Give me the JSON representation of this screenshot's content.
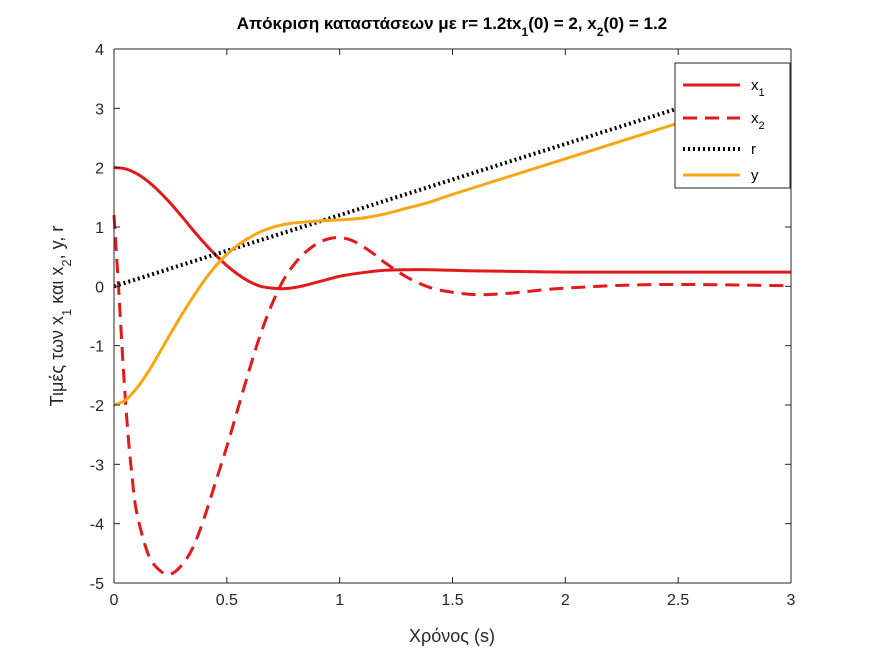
{
  "chart_data": {
    "type": "line",
    "title": "Απόκριση καταστάσεων με r= 1.2tx₁(0) = 2, x₂(0) = 1.2",
    "xlabel": "Χρόνος (s)",
    "ylabel": "Τιμές των x₁ και x₂, y, r",
    "xlim": [
      0,
      3
    ],
    "ylim": [
      -5,
      4
    ],
    "xticks": [
      "0",
      "0.5",
      "1",
      "1.5",
      "2",
      "2.5",
      "3"
    ],
    "yticks": [
      "-5",
      "-4",
      "-3",
      "-2",
      "-1",
      "0",
      "1",
      "2",
      "3",
      "4"
    ],
    "grid": false,
    "legend_position": "top-right",
    "series": [
      {
        "name": "x₁",
        "color": "#e31a1c",
        "style": "solid",
        "x": [
          0,
          0.05,
          0.1,
          0.15,
          0.2,
          0.25,
          0.3,
          0.35,
          0.4,
          0.45,
          0.5,
          0.55,
          0.6,
          0.65,
          0.7,
          0.75,
          0.8,
          0.85,
          0.9,
          0.95,
          1.0,
          1.1,
          1.2,
          1.3,
          1.4,
          1.5,
          1.6,
          1.8,
          2.0,
          2.2,
          2.5,
          2.8,
          3.0
        ],
        "y": [
          2.0,
          1.98,
          1.9,
          1.77,
          1.6,
          1.4,
          1.18,
          0.95,
          0.73,
          0.53,
          0.35,
          0.2,
          0.08,
          0.0,
          -0.03,
          -0.04,
          -0.02,
          0.02,
          0.07,
          0.12,
          0.17,
          0.23,
          0.27,
          0.28,
          0.28,
          0.27,
          0.26,
          0.25,
          0.24,
          0.24,
          0.24,
          0.24,
          0.24
        ]
      },
      {
        "name": "x₂",
        "color": "#e31a1c",
        "style": "dashed",
        "x": [
          0,
          0.02,
          0.04,
          0.06,
          0.08,
          0.1,
          0.15,
          0.2,
          0.25,
          0.3,
          0.35,
          0.4,
          0.45,
          0.5,
          0.55,
          0.6,
          0.65,
          0.7,
          0.75,
          0.8,
          0.85,
          0.9,
          0.95,
          1.0,
          1.05,
          1.1,
          1.15,
          1.2,
          1.3,
          1.4,
          1.5,
          1.6,
          1.7,
          1.8,
          1.9,
          2.0,
          2.2,
          2.4,
          2.6,
          2.8,
          3.0
        ],
        "y": [
          1.2,
          0.0,
          -1.3,
          -2.4,
          -3.2,
          -3.8,
          -4.5,
          -4.78,
          -4.85,
          -4.7,
          -4.4,
          -3.9,
          -3.3,
          -2.7,
          -2.05,
          -1.4,
          -0.8,
          -0.3,
          0.1,
          0.38,
          0.58,
          0.72,
          0.8,
          0.82,
          0.78,
          0.68,
          0.55,
          0.4,
          0.15,
          -0.02,
          -0.1,
          -0.14,
          -0.13,
          -0.1,
          -0.06,
          -0.03,
          0.01,
          0.03,
          0.03,
          0.02,
          0.01
        ]
      },
      {
        "name": "r",
        "color": "#000000",
        "style": "dotted",
        "x": [
          0,
          3
        ],
        "y": [
          0,
          3.6
        ]
      },
      {
        "name": "y",
        "color": "#f5a815",
        "style": "solid",
        "x": [
          0,
          0.05,
          0.1,
          0.15,
          0.2,
          0.25,
          0.3,
          0.35,
          0.4,
          0.45,
          0.5,
          0.55,
          0.6,
          0.65,
          0.7,
          0.75,
          0.8,
          0.9,
          1.0,
          1.1,
          1.2,
          1.3,
          1.4,
          1.5,
          1.75,
          2.0,
          2.25,
          2.5,
          2.75,
          3.0
        ],
        "y": [
          -2.0,
          -1.92,
          -1.72,
          -1.45,
          -1.13,
          -0.8,
          -0.48,
          -0.18,
          0.1,
          0.34,
          0.54,
          0.7,
          0.82,
          0.92,
          0.99,
          1.04,
          1.07,
          1.1,
          1.12,
          1.15,
          1.22,
          1.32,
          1.42,
          1.55,
          1.85,
          2.15,
          2.45,
          2.75,
          3.05,
          3.35
        ]
      }
    ]
  }
}
